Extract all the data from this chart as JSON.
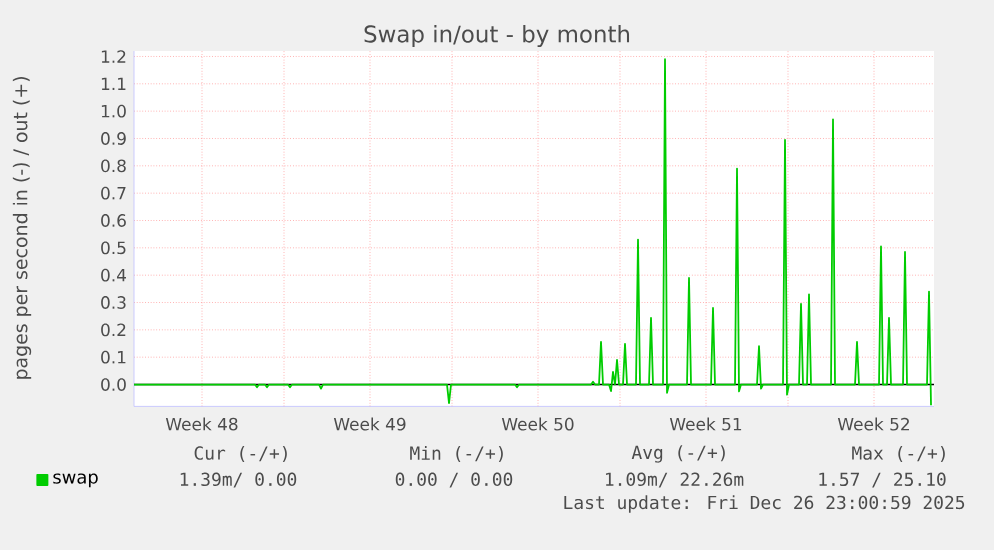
{
  "chart_data": {
    "type": "line",
    "title": "Swap in/out - by month",
    "ylabel": "pages per second in (-) / out (+)",
    "xlim": [
      "2025-11-23T18:00",
      "2025-12-27T02:00"
    ],
    "ylim": [
      -0.08,
      1.22
    ],
    "xticks": [
      {
        "value": "2025-11-26T14:00",
        "label": "Week 48"
      },
      {
        "value": "2025-12-03T14:00",
        "label": "Week 49"
      },
      {
        "value": "2025-12-10T14:00",
        "label": "Week 50"
      },
      {
        "value": "2025-12-17T14:00",
        "label": "Week 51"
      },
      {
        "value": "2025-12-24T14:00",
        "label": "Week 52"
      },
      {
        "value": "2025-11-30",
        "label": null
      },
      {
        "value": "2025-12-07",
        "label": null
      },
      {
        "value": "2025-12-14",
        "label": null
      },
      {
        "value": "2025-12-21",
        "label": null
      }
    ],
    "yticks": [
      {
        "value": 0,
        "label": "0.0"
      },
      0.1,
      0.2,
      0.3,
      0.4,
      0.5,
      0.6,
      0.7,
      0.8,
      0.9,
      {
        "value": 1,
        "label": "1.0"
      },
      1.1,
      1.2
    ],
    "grid": true,
    "legend": "bottom",
    "ref_lines": [
      {
        "axis": "y",
        "value": 0,
        "color": "#000000"
      }
    ],
    "series": [
      {
        "name": "swap",
        "color": "#00cc00",
        "x": [
          "2025-11-23T18:00",
          "2025-11-28T19:00",
          "2025-11-28T21:00",
          "2025-11-28T23:00",
          "2025-11-29T05:00",
          "2025-11-29T07:00",
          "2025-11-29T09:00",
          "2025-11-30T04:00",
          "2025-11-30T06:00",
          "2025-11-30T08:00",
          "2025-12-01T11:00",
          "2025-12-01T13:00",
          "2025-12-01T15:00",
          "2025-12-06T19:00",
          "2025-12-06T21:00",
          "2025-12-06T23:00",
          "2025-12-09T15:00",
          "2025-12-09T17:00",
          "2025-12-09T19:00",
          "2025-12-12T19:00",
          "2025-12-12T21:00",
          "2025-12-12T23:00",
          "2025-12-13T03:00",
          "2025-12-13T05:00",
          "2025-12-13T07:00",
          "2025-12-13T13:00",
          "2025-12-13T15:00",
          "2025-12-13T17:00",
          "2025-12-13T19:00",
          "2025-12-13T21:00",
          "2025-12-13T23:00",
          "2025-12-14T03:00",
          "2025-12-14T05:00",
          "2025-12-14T07:00",
          "2025-12-14T16:00",
          "2025-12-14T18:00",
          "2025-12-14T20:00",
          "2025-12-15T05:00",
          "2025-12-15T07:00",
          "2025-12-15T09:00",
          "2025-12-15T19:00",
          "2025-12-15T21:00",
          "2025-12-15T23:00",
          "2025-12-16T01:00",
          "2025-12-16T19:00",
          "2025-12-16T21:00",
          "2025-12-16T23:00",
          "2025-12-17T19:00",
          "2025-12-17T21:00",
          "2025-12-17T23:00",
          "2025-12-18T19:00",
          "2025-12-18T21:00",
          "2025-12-18T23:00",
          "2025-12-19T01:00",
          "2025-12-19T17:00",
          "2025-12-19T19:00",
          "2025-12-19T21:00",
          "2025-12-19T23:00",
          "2025-12-20T19:00",
          "2025-12-20T21:00",
          "2025-12-20T23:00",
          "2025-12-21T01:00",
          "2025-12-21T11:00",
          "2025-12-21T13:00",
          "2025-12-21T15:00",
          "2025-12-21T19:00",
          "2025-12-21T21:00",
          "2025-12-21T23:00",
          "2025-12-22T19:00",
          "2025-12-22T21:00",
          "2025-12-22T23:00",
          "2025-12-23T19:00",
          "2025-12-23T21:00",
          "2025-12-23T23:00",
          "2025-12-24T19:00",
          "2025-12-24T21:00",
          "2025-12-24T23:00",
          "2025-12-25T03:00",
          "2025-12-25T05:00",
          "2025-12-25T07:00",
          "2025-12-25T19:00",
          "2025-12-25T21:00",
          "2025-12-25T23:00",
          "2025-12-26T19:00",
          "2025-12-26T21:00",
          "2025-12-26T23:00"
        ],
        "values": [
          0,
          0,
          -0.01,
          0,
          0,
          -0.01,
          0,
          0,
          -0.01,
          0,
          0,
          -0.015,
          0,
          0,
          -0.068,
          0,
          0,
          -0.01,
          0,
          0,
          0.01,
          0,
          0,
          0.156,
          0,
          0,
          -0.024,
          0.046,
          0,
          0.09,
          0,
          0,
          0.149,
          0,
          0,
          0.53,
          0,
          0,
          0.244,
          0,
          0,
          1.19,
          -0.03,
          0,
          0,
          0.39,
          0,
          0,
          0.28,
          0,
          0,
          0.79,
          -0.025,
          0,
          0,
          0.14,
          -0.015,
          0,
          0,
          0.895,
          -0.037,
          0,
          0,
          0.295,
          0,
          0,
          0.33,
          0,
          0,
          0.97,
          0,
          0,
          0.156,
          0,
          0,
          0.505,
          0,
          0,
          0.244,
          0,
          0,
          0.485,
          0,
          0,
          0.34,
          -0.076
        ]
      }
    ],
    "annotations": [
      "Cur (-/+)",
      "Min (-/+)",
      "Avg (-/+)",
      "Max (-/+)",
      "1.39m/  0.00",
      "0.00 /  0.00",
      "1.09m/ 22.26m",
      "1.57 / 25.10",
      "Last update: Fri Dec 26 23:00:59 2025"
    ]
  }
}
